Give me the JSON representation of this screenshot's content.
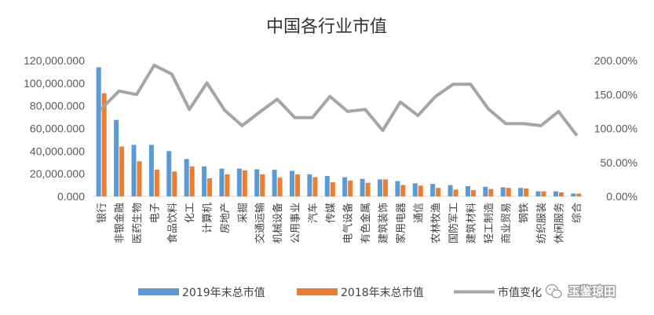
{
  "watermark": {
    "text": "玉鉴琼田",
    "icon": "wechat-icon"
  },
  "chart_data": {
    "type": "bar",
    "title": "中国各行业市值",
    "categories": [
      "银行",
      "非银金融",
      "医药生物",
      "电子",
      "食品饮料",
      "化工",
      "计算机",
      "房地产",
      "采掘",
      "交通运输",
      "机械设备",
      "公用事业",
      "汽车",
      "传媒",
      "电气设备",
      "有色金属",
      "建筑装饰",
      "家用电器",
      "通信",
      "农林牧渔",
      "国防军工",
      "建筑材料",
      "轻工制造",
      "商业贸易",
      "钢铁",
      "纺织服装",
      "休闲服务",
      "综合"
    ],
    "series": [
      {
        "name": "2019年末总市值",
        "type": "bar",
        "axis": "left",
        "color": "#5B9BD5",
        "values": [
          114000000,
          67500000,
          45500000,
          45500000,
          40000000,
          33000000,
          26500000,
          24500000,
          24500000,
          24000000,
          23500000,
          22500000,
          19500000,
          18000000,
          17000000,
          15500000,
          15000000,
          13500000,
          11500000,
          11000000,
          10000000,
          9000000,
          8500000,
          8000000,
          7500000,
          4500000,
          4500000,
          2500000
        ]
      },
      {
        "name": "2018年末总市值",
        "type": "bar",
        "axis": "left",
        "color": "#ED7D31",
        "values": [
          91000000,
          44000000,
          31000000,
          23500000,
          22000000,
          26500000,
          16000000,
          19500000,
          23000000,
          19500000,
          16500000,
          19500000,
          17000000,
          12500000,
          14000000,
          12000000,
          15000000,
          10000000,
          9500000,
          7500000,
          6000000,
          5500000,
          6500000,
          7500000,
          7000000,
          4500000,
          3500000,
          2500000
        ]
      },
      {
        "name": "市值变化",
        "type": "line",
        "axis": "right",
        "color": "#A5A5A5",
        "values": [
          1.29,
          1.55,
          1.5,
          1.93,
          1.8,
          1.28,
          1.67,
          1.27,
          1.04,
          1.24,
          1.43,
          1.16,
          1.16,
          1.47,
          1.25,
          1.28,
          0.97,
          1.39,
          1.19,
          1.47,
          1.65,
          1.65,
          1.29,
          1.07,
          1.07,
          1.04,
          1.25,
          0.91
        ]
      }
    ],
    "y_left": {
      "min": 0,
      "max": 120000000,
      "step": 20000000,
      "tick_labels": [
        "0.000",
        "20,000.000",
        "40,000.000",
        "60,000.000",
        "80,000.000",
        "100,000.000",
        "120,000.000"
      ]
    },
    "y_right": {
      "min": 0,
      "max": 2.0,
      "step": 0.5,
      "tick_labels": [
        "0.00%",
        "50.00%",
        "100.00%",
        "150.00%",
        "200.00%"
      ]
    },
    "grid": false,
    "legend": "bottom"
  }
}
